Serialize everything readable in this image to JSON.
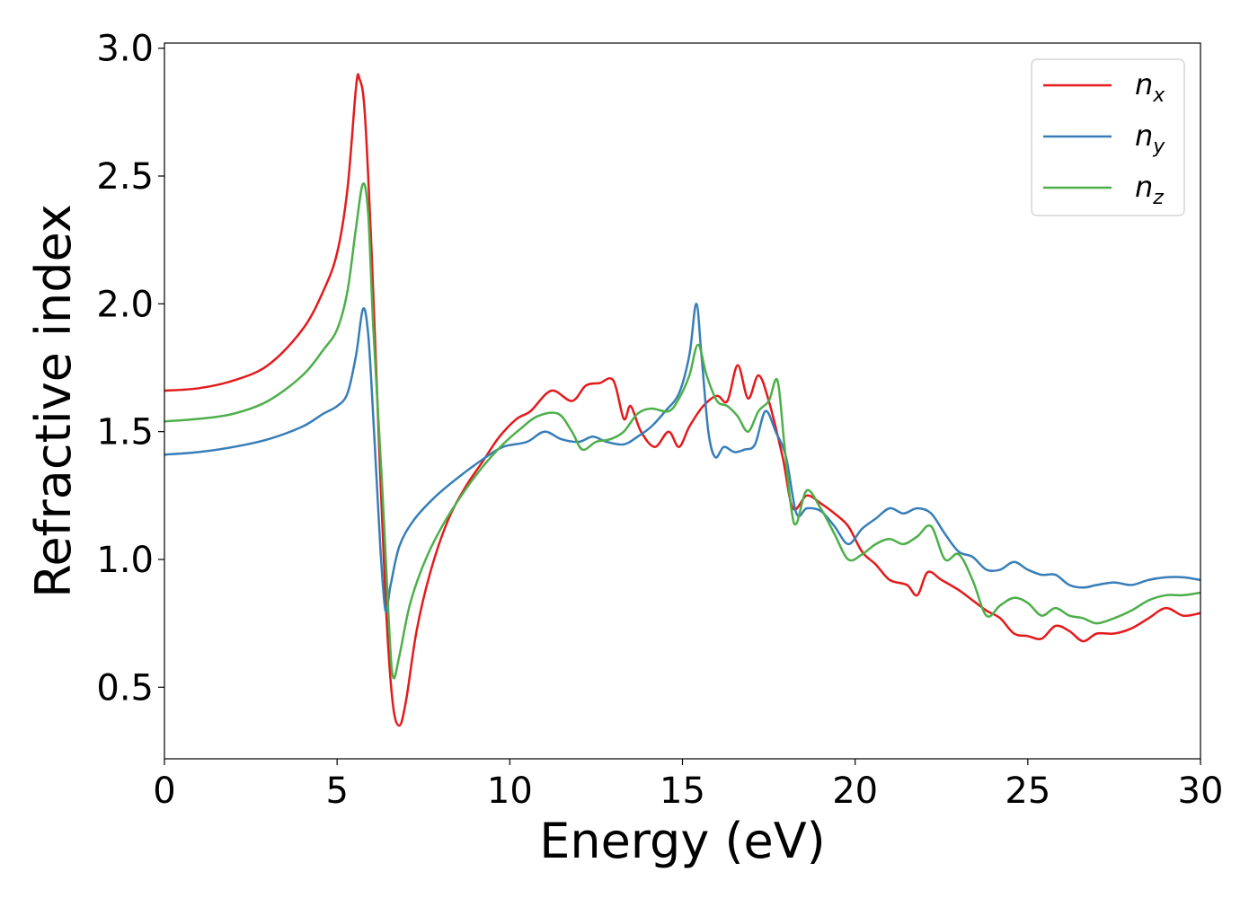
{
  "chart_data": {
    "type": "line",
    "xlabel": "Energy (eV)",
    "ylabel": "Refractive index",
    "xlim": [
      0,
      30
    ],
    "ylim": [
      0.22,
      3.02
    ],
    "xticks": [
      0,
      5,
      10,
      15,
      20,
      25,
      30
    ],
    "yticks": [
      0.5,
      1.0,
      1.5,
      2.0,
      2.5,
      3.0
    ],
    "xtick_labels": [
      "0",
      "5",
      "10",
      "15",
      "20",
      "25",
      "30"
    ],
    "ytick_labels": [
      "0.5",
      "1.0",
      "1.5",
      "2.0",
      "2.5",
      "3.0"
    ],
    "grid": false,
    "legend_position": "top-right",
    "series": [
      {
        "name": "n_x",
        "label_base": "n",
        "label_sub": "x",
        "color": "#e41a1c",
        "points": [
          [
            0,
            1.66
          ],
          [
            1,
            1.67
          ],
          [
            2,
            1.7
          ],
          [
            3,
            1.76
          ],
          [
            4,
            1.9
          ],
          [
            4.6,
            2.05
          ],
          [
            5.0,
            2.2
          ],
          [
            5.3,
            2.45
          ],
          [
            5.55,
            2.85
          ],
          [
            5.65,
            2.88
          ],
          [
            5.8,
            2.75
          ],
          [
            6.0,
            2.2
          ],
          [
            6.2,
            1.5
          ],
          [
            6.4,
            0.85
          ],
          [
            6.6,
            0.45
          ],
          [
            6.8,
            0.35
          ],
          [
            7.0,
            0.45
          ],
          [
            7.3,
            0.72
          ],
          [
            7.7,
            0.95
          ],
          [
            8.2,
            1.15
          ],
          [
            8.7,
            1.28
          ],
          [
            9.2,
            1.38
          ],
          [
            9.7,
            1.48
          ],
          [
            10.2,
            1.55
          ],
          [
            10.6,
            1.58
          ],
          [
            11.2,
            1.66
          ],
          [
            11.8,
            1.62
          ],
          [
            12.2,
            1.68
          ],
          [
            12.6,
            1.69
          ],
          [
            13.0,
            1.7
          ],
          [
            13.3,
            1.55
          ],
          [
            13.5,
            1.6
          ],
          [
            13.8,
            1.5
          ],
          [
            14.2,
            1.44
          ],
          [
            14.6,
            1.5
          ],
          [
            14.9,
            1.44
          ],
          [
            15.2,
            1.52
          ],
          [
            15.6,
            1.6
          ],
          [
            16.0,
            1.64
          ],
          [
            16.3,
            1.62
          ],
          [
            16.6,
            1.76
          ],
          [
            16.9,
            1.63
          ],
          [
            17.2,
            1.72
          ],
          [
            17.5,
            1.62
          ],
          [
            17.9,
            1.4
          ],
          [
            18.2,
            1.2
          ],
          [
            18.6,
            1.25
          ],
          [
            19.0,
            1.22
          ],
          [
            19.4,
            1.18
          ],
          [
            19.8,
            1.13
          ],
          [
            20.2,
            1.03
          ],
          [
            20.6,
            0.98
          ],
          [
            21.0,
            0.92
          ],
          [
            21.5,
            0.9
          ],
          [
            21.8,
            0.86
          ],
          [
            22.1,
            0.95
          ],
          [
            22.5,
            0.92
          ],
          [
            23.0,
            0.88
          ],
          [
            23.4,
            0.84
          ],
          [
            23.8,
            0.8
          ],
          [
            24.2,
            0.77
          ],
          [
            24.6,
            0.71
          ],
          [
            25.0,
            0.7
          ],
          [
            25.4,
            0.69
          ],
          [
            25.8,
            0.74
          ],
          [
            26.2,
            0.72
          ],
          [
            26.6,
            0.68
          ],
          [
            27.0,
            0.71
          ],
          [
            27.5,
            0.71
          ],
          [
            28.0,
            0.73
          ],
          [
            28.5,
            0.77
          ],
          [
            29.0,
            0.81
          ],
          [
            29.5,
            0.78
          ],
          [
            30.0,
            0.79
          ]
        ]
      },
      {
        "name": "n_y",
        "label_base": "n",
        "label_sub": "y",
        "color": "#377eb8",
        "points": [
          [
            0,
            1.41
          ],
          [
            1,
            1.42
          ],
          [
            2,
            1.44
          ],
          [
            3,
            1.47
          ],
          [
            4,
            1.52
          ],
          [
            4.6,
            1.57
          ],
          [
            5.0,
            1.6
          ],
          [
            5.3,
            1.65
          ],
          [
            5.55,
            1.8
          ],
          [
            5.75,
            1.98
          ],
          [
            5.9,
            1.88
          ],
          [
            6.05,
            1.55
          ],
          [
            6.25,
            1.05
          ],
          [
            6.4,
            0.8
          ],
          [
            6.55,
            0.9
          ],
          [
            6.8,
            1.05
          ],
          [
            7.2,
            1.15
          ],
          [
            7.8,
            1.24
          ],
          [
            8.5,
            1.32
          ],
          [
            9.2,
            1.39
          ],
          [
            9.8,
            1.44
          ],
          [
            10.5,
            1.46
          ],
          [
            11.0,
            1.5
          ],
          [
            11.5,
            1.47
          ],
          [
            12.0,
            1.46
          ],
          [
            12.4,
            1.48
          ],
          [
            12.8,
            1.46
          ],
          [
            13.3,
            1.45
          ],
          [
            13.7,
            1.48
          ],
          [
            14.1,
            1.52
          ],
          [
            14.5,
            1.58
          ],
          [
            14.9,
            1.65
          ],
          [
            15.2,
            1.8
          ],
          [
            15.4,
            2.0
          ],
          [
            15.55,
            1.8
          ],
          [
            15.75,
            1.5
          ],
          [
            15.95,
            1.4
          ],
          [
            16.2,
            1.44
          ],
          [
            16.5,
            1.42
          ],
          [
            16.8,
            1.43
          ],
          [
            17.1,
            1.45
          ],
          [
            17.4,
            1.58
          ],
          [
            17.7,
            1.5
          ],
          [
            18.0,
            1.4
          ],
          [
            18.3,
            1.18
          ],
          [
            18.6,
            1.2
          ],
          [
            19.0,
            1.19
          ],
          [
            19.4,
            1.13
          ],
          [
            19.8,
            1.06
          ],
          [
            20.2,
            1.12
          ],
          [
            20.6,
            1.16
          ],
          [
            21.0,
            1.2
          ],
          [
            21.4,
            1.18
          ],
          [
            21.8,
            1.2
          ],
          [
            22.2,
            1.18
          ],
          [
            22.6,
            1.1
          ],
          [
            23.0,
            1.03
          ],
          [
            23.4,
            1.01
          ],
          [
            23.8,
            0.96
          ],
          [
            24.2,
            0.96
          ],
          [
            24.6,
            0.99
          ],
          [
            25.0,
            0.96
          ],
          [
            25.4,
            0.94
          ],
          [
            25.8,
            0.94
          ],
          [
            26.2,
            0.9
          ],
          [
            26.6,
            0.89
          ],
          [
            27.0,
            0.9
          ],
          [
            27.5,
            0.91
          ],
          [
            28.0,
            0.9
          ],
          [
            28.5,
            0.92
          ],
          [
            29.0,
            0.93
          ],
          [
            29.5,
            0.93
          ],
          [
            30.0,
            0.92
          ]
        ]
      },
      {
        "name": "n_z",
        "label_base": "n",
        "label_sub": "z",
        "color": "#4daf4a",
        "points": [
          [
            0,
            1.54
          ],
          [
            1,
            1.55
          ],
          [
            2,
            1.57
          ],
          [
            3,
            1.62
          ],
          [
            4,
            1.72
          ],
          [
            4.6,
            1.82
          ],
          [
            5.0,
            1.9
          ],
          [
            5.3,
            2.05
          ],
          [
            5.55,
            2.3
          ],
          [
            5.75,
            2.47
          ],
          [
            5.9,
            2.35
          ],
          [
            6.05,
            1.9
          ],
          [
            6.3,
            1.3
          ],
          [
            6.5,
            0.75
          ],
          [
            6.62,
            0.54
          ],
          [
            6.8,
            0.62
          ],
          [
            7.1,
            0.82
          ],
          [
            7.5,
            0.98
          ],
          [
            8.0,
            1.12
          ],
          [
            8.6,
            1.25
          ],
          [
            9.2,
            1.36
          ],
          [
            9.8,
            1.45
          ],
          [
            10.3,
            1.51
          ],
          [
            10.8,
            1.56
          ],
          [
            11.4,
            1.57
          ],
          [
            11.8,
            1.5
          ],
          [
            12.1,
            1.43
          ],
          [
            12.5,
            1.46
          ],
          [
            12.9,
            1.47
          ],
          [
            13.3,
            1.5
          ],
          [
            13.7,
            1.57
          ],
          [
            14.1,
            1.59
          ],
          [
            14.6,
            1.58
          ],
          [
            14.9,
            1.63
          ],
          [
            15.2,
            1.72
          ],
          [
            15.45,
            1.84
          ],
          [
            15.7,
            1.72
          ],
          [
            16.0,
            1.62
          ],
          [
            16.3,
            1.6
          ],
          [
            16.6,
            1.56
          ],
          [
            16.9,
            1.5
          ],
          [
            17.2,
            1.58
          ],
          [
            17.5,
            1.62
          ],
          [
            17.75,
            1.7
          ],
          [
            17.95,
            1.45
          ],
          [
            18.15,
            1.2
          ],
          [
            18.3,
            1.14
          ],
          [
            18.6,
            1.27
          ],
          [
            19.0,
            1.2
          ],
          [
            19.4,
            1.1
          ],
          [
            19.8,
            1.0
          ],
          [
            20.2,
            1.02
          ],
          [
            20.6,
            1.06
          ],
          [
            21.0,
            1.08
          ],
          [
            21.4,
            1.06
          ],
          [
            21.8,
            1.09
          ],
          [
            22.2,
            1.13
          ],
          [
            22.6,
            1.0
          ],
          [
            23.0,
            1.02
          ],
          [
            23.4,
            0.92
          ],
          [
            23.8,
            0.78
          ],
          [
            24.2,
            0.82
          ],
          [
            24.6,
            0.85
          ],
          [
            25.0,
            0.83
          ],
          [
            25.4,
            0.78
          ],
          [
            25.8,
            0.81
          ],
          [
            26.2,
            0.78
          ],
          [
            26.6,
            0.77
          ],
          [
            27.0,
            0.75
          ],
          [
            27.5,
            0.77
          ],
          [
            28.0,
            0.8
          ],
          [
            28.5,
            0.84
          ],
          [
            29.0,
            0.86
          ],
          [
            29.5,
            0.86
          ],
          [
            30.0,
            0.87
          ]
        ]
      }
    ]
  }
}
